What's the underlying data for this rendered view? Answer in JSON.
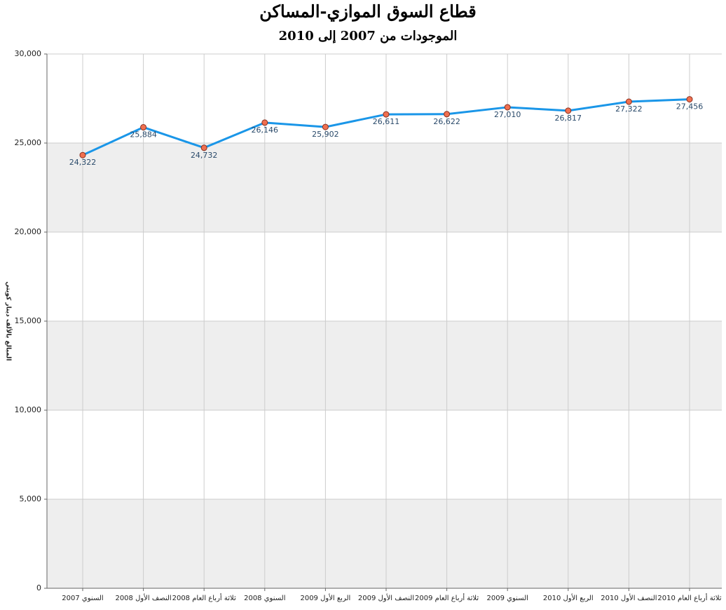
{
  "chart_data": {
    "type": "line",
    "title": "قطاع السوق الموازي-المساكن",
    "subtitle": "الموجودات من 2007 إلى 2010",
    "y_label": "المبالغ بالألف دينار كويتي",
    "categories": [
      "السنوي 2007",
      "النصف الأول 2008",
      "ثلاثة أرباع العام 2008",
      "السنوي 2008",
      "الربع الأول 2009",
      "النصف الأول 2009",
      "ثلاثة أرباع العام 2009",
      "السنوي 2009",
      "الربع الأول 2010",
      "النصف الأول 2010",
      "ثلاثة أرباع العام 2010"
    ],
    "series": [
      {
        "color": "#1a96e8",
        "marker_color": "#f07050",
        "values": [
          24322,
          25884,
          24732,
          26146,
          25902,
          26611,
          26622,
          27010,
          26817,
          27322,
          27456
        ],
        "value_labels": [
          "24,322",
          "25,884",
          "24,732",
          "26,146",
          "25,902",
          "26,611",
          "26,622",
          "27,010",
          "26,817",
          "27,322",
          "27,456"
        ]
      }
    ],
    "ylim": [
      0,
      30000
    ],
    "yticks": [
      0,
      {
        "value": 5000,
        "label": "5,000"
      },
      {
        "value": 10000,
        "label": "10,000"
      },
      {
        "value": 15000,
        "label": "15,000"
      },
      {
        "value": 20000,
        "label": "20,000"
      },
      {
        "value": 25000,
        "label": "25,000"
      },
      {
        "value": 30000,
        "label": "30,000"
      }
    ],
    "grid": true,
    "band_color": "#eeeeee"
  }
}
